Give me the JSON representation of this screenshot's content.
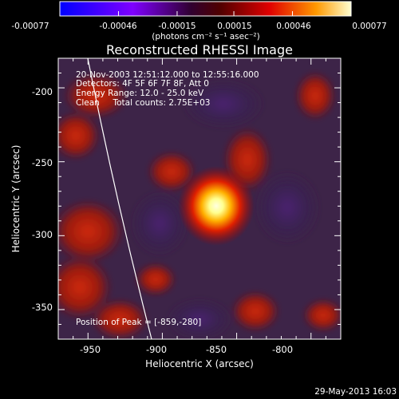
{
  "colorbar": {
    "ticks": [
      "-0.00077",
      "-0.00046",
      "-0.00015",
      "0.00015",
      "0.00046",
      "0.00077"
    ],
    "units": "(photons cm⁻² s⁻¹ asec⁻²)",
    "min": -0.00077,
    "max": 0.00077
  },
  "image": {
    "title": "Reconstructed RHESSI Image",
    "xlabel": "Heliocentric X (arcsec)",
    "ylabel": "Heliocentric Y (arcsec)",
    "xlim": [
      -970,
      -780
    ],
    "ylim": [
      -370,
      -180
    ],
    "xticks": [
      "-950",
      "-900",
      "-850",
      "-800"
    ],
    "yticks": [
      "-200",
      "-250",
      "-300",
      "-350"
    ],
    "annotation_lines": [
      "20-Nov-2003 12:51:12.000 to 12:55:16.000",
      "Detectors: 4F 5F 6F 7F 8F, Att 0",
      "Energy Range: 12.0 - 25.0 keV",
      "Clean     Total counts: 2.75E+03"
    ],
    "peak_label": "Position of Peak = [-859,-280]",
    "peak": {
      "x": -859,
      "y": -280
    }
  },
  "footer": {
    "timestamp": "29-May-2013 16:03"
  }
}
